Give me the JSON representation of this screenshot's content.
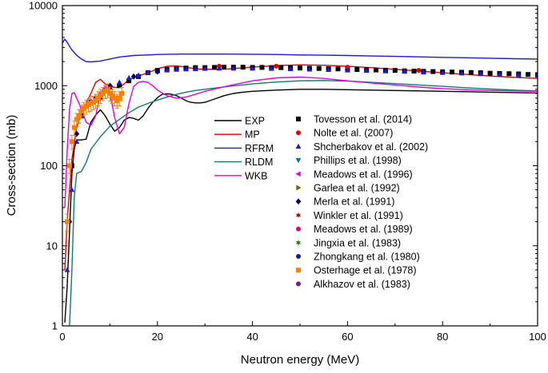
{
  "chart_data": {
    "type": "line",
    "title": "",
    "xlabel": "Neutron energy (MeV)",
    "ylabel": "Cross-section (mb)",
    "xlim": [
      0,
      100
    ],
    "ylim": [
      1,
      10000
    ],
    "y_scale": "log",
    "grid": false,
    "x_ticks": [
      {
        "value": 0,
        "label": "0"
      },
      {
        "value": 20,
        "label": "20"
      },
      {
        "value": 40,
        "label": "40"
      },
      {
        "value": 60,
        "label": "60"
      },
      {
        "value": 80,
        "label": "80"
      },
      {
        "value": 100,
        "label": "100"
      }
    ],
    "y_ticks": [
      {
        "value": 1,
        "label": "1"
      },
      {
        "value": 10,
        "label": "10"
      },
      {
        "value": 100,
        "label": "100"
      },
      {
        "value": 1000,
        "label": "1000"
      },
      {
        "value": 10000,
        "label": "10000"
      }
    ],
    "legend_position": "center-right",
    "lines": [
      {
        "name": "EXP",
        "color": "#000000",
        "x": [
          0.5,
          1,
          1.5,
          2,
          2.5,
          3,
          4,
          5,
          6,
          7,
          8,
          9,
          10,
          11,
          12,
          13,
          14,
          15,
          16,
          17,
          18,
          19,
          20,
          21,
          22,
          23,
          24,
          25,
          26,
          27,
          28,
          29,
          30,
          32,
          34,
          36,
          38,
          40,
          45,
          50,
          55,
          60,
          65,
          70,
          75,
          80,
          85,
          90,
          95,
          100
        ],
        "y": [
          1.1,
          3,
          15,
          80,
          160,
          210,
          210,
          215,
          350,
          430,
          500,
          420,
          330,
          270,
          300,
          370,
          400,
          390,
          370,
          420,
          520,
          620,
          710,
          780,
          790,
          780,
          750,
          700,
          650,
          620,
          610,
          610,
          620,
          680,
          750,
          800,
          830,
          850,
          880,
          900,
          900,
          890,
          880,
          870,
          860,
          850,
          840,
          830,
          820,
          810
        ]
      },
      {
        "name": "MP",
        "color": "#e00000",
        "x": [
          0.5,
          1,
          2,
          3,
          4,
          5,
          6,
          7,
          8,
          9,
          10,
          11,
          12,
          13,
          14,
          15,
          16,
          18,
          20,
          22,
          24,
          26,
          28,
          30,
          35,
          40,
          45,
          50,
          55,
          60,
          65,
          70,
          75,
          80,
          85,
          90,
          95,
          100
        ],
        "y": [
          5,
          20,
          120,
          300,
          450,
          600,
          800,
          1100,
          1200,
          1050,
          1000,
          950,
          950,
          1050,
          1200,
          1250,
          1320,
          1450,
          1620,
          1750,
          1760,
          1700,
          1620,
          1600,
          1620,
          1700,
          1780,
          1820,
          1800,
          1750,
          1680,
          1600,
          1520,
          1450,
          1380,
          1320,
          1270,
          1230
        ]
      },
      {
        "name": "RFRM",
        "color": "#1a1adc",
        "x": [
          0,
          0.5,
          1,
          1.5,
          2,
          3,
          4,
          5,
          6,
          8,
          10,
          12,
          15,
          18,
          20,
          25,
          30,
          35,
          40,
          45,
          50,
          55,
          60,
          65,
          70,
          75,
          80,
          85,
          90,
          95,
          100
        ],
        "y": [
          3400,
          3800,
          3500,
          3100,
          2800,
          2400,
          2150,
          2000,
          1980,
          2030,
          2150,
          2280,
          2380,
          2420,
          2450,
          2480,
          2480,
          2480,
          2470,
          2450,
          2420,
          2400,
          2380,
          2350,
          2320,
          2290,
          2260,
          2230,
          2200,
          2170,
          2150
        ]
      },
      {
        "name": "RLDM",
        "color": "#117a6a",
        "x": [
          1.5,
          2,
          2.5,
          3,
          4,
          5,
          6,
          8,
          10,
          12,
          14,
          16,
          18,
          20,
          22,
          24,
          26,
          28,
          30,
          35,
          40,
          45,
          50,
          55,
          60,
          65,
          70,
          75,
          80,
          85,
          90,
          95,
          100
        ],
        "y": [
          1.0,
          5,
          40,
          80,
          85,
          110,
          160,
          230,
          310,
          380,
          460,
          540,
          600,
          660,
          720,
          780,
          830,
          870,
          900,
          980,
          1050,
          1110,
          1150,
          1160,
          1140,
          1100,
          1060,
          1020,
          980,
          940,
          910,
          880,
          860
        ]
      },
      {
        "name": "WKB",
        "color": "#e000e0",
        "x": [
          0.5,
          1,
          1.5,
          2,
          2.5,
          3,
          3.5,
          4,
          5,
          6,
          7,
          8,
          9,
          10,
          11,
          12,
          13,
          14,
          15,
          16,
          17,
          18,
          19,
          20,
          22,
          24,
          26,
          28,
          30,
          35,
          40,
          45,
          50,
          55,
          60,
          65,
          70,
          75,
          80,
          85,
          90,
          95,
          100
        ],
        "y": [
          30,
          150,
          500,
          800,
          820,
          700,
          600,
          500,
          350,
          320,
          420,
          800,
          1000,
          800,
          400,
          250,
          300,
          600,
          980,
          1100,
          1130,
          1100,
          1000,
          880,
          750,
          700,
          720,
          780,
          850,
          1000,
          1150,
          1250,
          1280,
          1230,
          1150,
          1080,
          1020,
          960,
          920,
          890,
          870,
          860,
          850
        ]
      }
    ],
    "scatter_series": [
      {
        "name": "Tovesson et al. (2014)",
        "color": "#000000",
        "marker": "square",
        "x": [
          2,
          4,
          6,
          8,
          10,
          12,
          14,
          16,
          18,
          20,
          22,
          24,
          26,
          28,
          30,
          32,
          34,
          36,
          38,
          40,
          42,
          44,
          46,
          48,
          50,
          52,
          54,
          56,
          58,
          60,
          62,
          64,
          66,
          68,
          70,
          72,
          74,
          76,
          78,
          80,
          82,
          84,
          86,
          88,
          90,
          92,
          94,
          96,
          98,
          100
        ],
        "y": [
          100,
          420,
          620,
          720,
          950,
          1000,
          1150,
          1300,
          1450,
          1550,
          1600,
          1640,
          1660,
          1680,
          1680,
          1690,
          1700,
          1700,
          1700,
          1690,
          1690,
          1680,
          1680,
          1670,
          1660,
          1650,
          1640,
          1630,
          1620,
          1610,
          1590,
          1580,
          1570,
          1560,
          1550,
          1530,
          1520,
          1510,
          1500,
          1490,
          1480,
          1470,
          1460,
          1450,
          1430,
          1420,
          1410,
          1400,
          1380,
          1370
        ]
      },
      {
        "name": "Nolte et al. (2007)",
        "color": "#e00000",
        "marker": "circle",
        "x": [
          33,
          45,
          60,
          75
        ],
        "y": [
          1750,
          1750,
          1700,
          1550
        ]
      },
      {
        "name": "Shcherbakov et al. (2002)",
        "color": "#1a1adc",
        "marker": "triangle-up",
        "x": [
          1,
          2,
          3,
          4,
          5,
          6,
          7,
          8,
          9,
          10,
          12,
          14,
          16,
          18,
          20,
          22,
          24,
          26,
          28,
          30,
          33,
          36,
          40,
          44,
          48,
          52,
          56,
          60,
          64,
          68,
          72,
          76,
          80,
          84,
          88,
          92,
          96,
          100
        ],
        "y": [
          5,
          50,
          200,
          420,
          560,
          650,
          720,
          800,
          900,
          1000,
          1100,
          1250,
          1350,
          1450,
          1520,
          1560,
          1590,
          1610,
          1620,
          1630,
          1640,
          1640,
          1640,
          1630,
          1620,
          1600,
          1580,
          1560,
          1540,
          1520,
          1500,
          1470,
          1450,
          1430,
          1400,
          1380,
          1360,
          1340
        ]
      },
      {
        "name": "Phillips et al. (1998)",
        "color": "#117a6a",
        "marker": "triangle-down",
        "x": [],
        "y": []
      },
      {
        "name": "Meadows et al. (1996)",
        "color": "#e000e0",
        "marker": "triangle-left",
        "x": [],
        "y": []
      },
      {
        "name": "Garlea et al. (1992)",
        "color": "#6b6b00",
        "marker": "triangle-right",
        "x": [],
        "y": []
      },
      {
        "name": "Merla et al. (1991)",
        "color": "#00005a",
        "marker": "diamond",
        "x": [
          1.5,
          3,
          5,
          7,
          10,
          15,
          20
        ],
        "y": [
          20,
          250,
          550,
          700,
          1000,
          1300,
          1500
        ]
      },
      {
        "name": "Winkler et al. (1991)",
        "color": "#8b1a1a",
        "marker": "star",
        "x": [],
        "y": []
      },
      {
        "name": "Meadows et al. (1989)",
        "color": "#e00090",
        "marker": "circle",
        "x": [],
        "y": []
      },
      {
        "name": "Jingxia et al. (1983)",
        "color": "#1a7a1a",
        "marker": "star",
        "x": [],
        "y": []
      },
      {
        "name": "Zhongkang et al. (1980)",
        "color": "#1a1a90",
        "marker": "circle",
        "x": [],
        "y": []
      },
      {
        "name": "Osterhage et al. (1978)",
        "color": "#ff7f00",
        "marker": "square",
        "x": [
          1,
          1.5,
          2,
          2.5,
          3,
          3.5,
          4,
          4.5,
          5,
          5.5,
          6,
          6.5,
          7,
          7.5,
          8,
          8.5,
          9,
          9.5,
          10,
          10.5,
          11,
          11.5,
          12,
          12.5
        ],
        "y": [
          20,
          100,
          200,
          300,
          380,
          420,
          480,
          520,
          550,
          580,
          600,
          620,
          650,
          700,
          750,
          800,
          850,
          880,
          800,
          750,
          700,
          650,
          700,
          800
        ],
        "errors": [
          5,
          20,
          40,
          60,
          70,
          80,
          90,
          100,
          110,
          110,
          120,
          120,
          130,
          140,
          150,
          150,
          160,
          170,
          160,
          150,
          140,
          130,
          140,
          150
        ]
      },
      {
        "name": "Alkhazov et al. (1983)",
        "color": "#7a1a7a",
        "marker": "circle",
        "x": [],
        "y": []
      }
    ]
  }
}
